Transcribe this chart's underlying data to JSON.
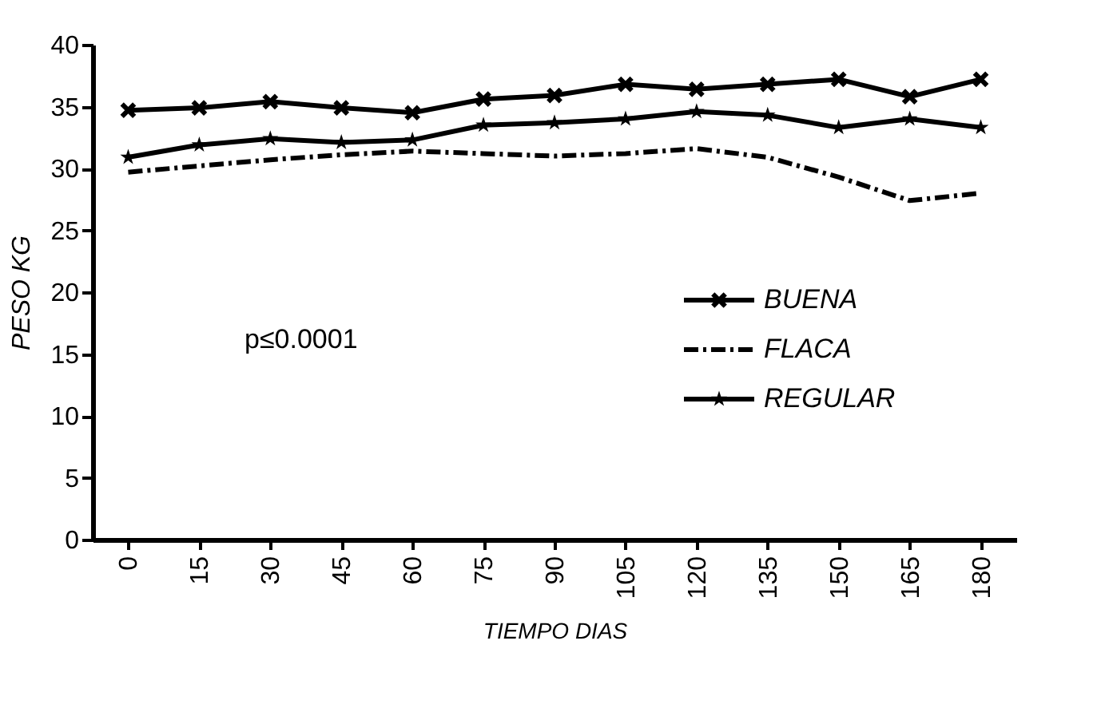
{
  "chart_data": {
    "type": "line",
    "xlabel": "TIEMPO DIAS",
    "ylabel": "PESO KG",
    "categories": [
      "0",
      "15",
      "30",
      "45",
      "60",
      "75",
      "90",
      "105",
      "120",
      "135",
      "150",
      "165",
      "180"
    ],
    "series": [
      {
        "name": "BUENA",
        "color": "#000000",
        "marker": "cross",
        "line_style": "solid",
        "values": [
          34.7,
          34.9,
          35.4,
          34.9,
          34.5,
          35.6,
          35.9,
          36.8,
          36.4,
          36.8,
          37.2,
          35.8,
          37.2
        ]
      },
      {
        "name": "FLACA",
        "color": "#000000",
        "marker": "none",
        "line_style": "dashed",
        "values": [
          29.7,
          30.2,
          30.7,
          31.1,
          31.4,
          31.2,
          31.0,
          31.2,
          31.6,
          30.9,
          29.3,
          27.4,
          28.0
        ]
      },
      {
        "name": "REGULAR",
        "color": "#000000",
        "marker": "star",
        "line_style": "solid",
        "values": [
          30.9,
          31.9,
          32.4,
          32.1,
          32.3,
          33.5,
          33.7,
          34.0,
          34.6,
          34.3,
          33.3,
          34.0,
          33.3
        ]
      }
    ],
    "ylim": [
      0,
      40
    ],
    "yticks": [
      0,
      5,
      10,
      15,
      20,
      25,
      30,
      35,
      40
    ],
    "grid": false,
    "legend": "right",
    "annotations": [
      "p≤0.0001"
    ]
  }
}
